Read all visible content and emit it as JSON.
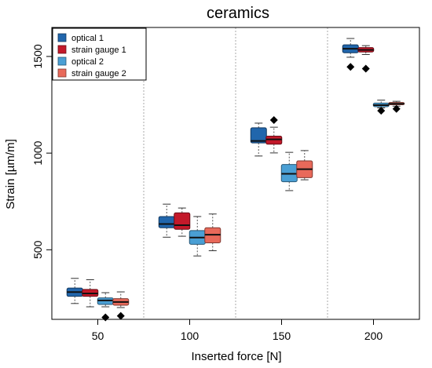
{
  "chart_data": {
    "type": "boxplot",
    "title": "ceramics",
    "xlabel": "Inserted force [N]",
    "ylabel": "Strain [µm/m]",
    "categories": [
      "50",
      "100",
      "150",
      "200"
    ],
    "yticks": [
      500,
      1000,
      1500
    ],
    "ylim": [
      140,
      1650
    ],
    "legend_position": "top-left",
    "grid": "vertical dotted separators between groups",
    "series": [
      {
        "name": "optical 1",
        "color": "#2166ac",
        "boxes": [
          {
            "whisker_low": 222,
            "q1": 259,
            "median": 281,
            "q3": 302,
            "whisker_high": 352,
            "outliers": []
          },
          {
            "whisker_low": 565,
            "q1": 614,
            "median": 633,
            "q3": 672,
            "whisker_high": 736,
            "outliers": []
          },
          {
            "whisker_low": 985,
            "q1": 1053,
            "median": 1063,
            "q3": 1131,
            "whisker_high": 1155,
            "outliers": []
          },
          {
            "whisker_low": 1496,
            "q1": 1519,
            "median": 1540,
            "q3": 1560,
            "whisker_high": 1593,
            "outliers": [
              1446
            ]
          }
        ]
      },
      {
        "name": "strain gauge 1",
        "color": "#c3192a",
        "boxes": [
          {
            "whisker_low": 205,
            "q1": 259,
            "median": 274,
            "q3": 295,
            "whisker_high": 345,
            "outliers": []
          },
          {
            "whisker_low": 570,
            "q1": 606,
            "median": 627,
            "q3": 691,
            "whisker_high": 716,
            "outliers": []
          },
          {
            "whisker_low": 1001,
            "q1": 1046,
            "median": 1071,
            "q3": 1088,
            "whisker_high": 1134,
            "outliers": [
              1171
            ]
          },
          {
            "whisker_low": 1510,
            "q1": 1523,
            "median": 1534,
            "q3": 1546,
            "whisker_high": 1556,
            "outliers": [
              1437
            ]
          }
        ]
      },
      {
        "name": "optical 2",
        "color": "#4a9fd4",
        "boxes": [
          {
            "whisker_low": 205,
            "q1": 217,
            "median": 238,
            "q3": 251,
            "whisker_high": 278,
            "outliers": [
              150
            ]
          },
          {
            "whisker_low": 468,
            "q1": 528,
            "median": 563,
            "q3": 599,
            "whisker_high": 672,
            "outliers": []
          },
          {
            "whisker_low": 806,
            "q1": 852,
            "median": 893,
            "q3": 941,
            "whisker_high": 1004,
            "outliers": []
          },
          {
            "whisker_low": 1234,
            "q1": 1240,
            "median": 1248,
            "q3": 1259,
            "whisker_high": 1274,
            "outliers": [
              1219
            ]
          }
        ]
      },
      {
        "name": "strain gauge 2",
        "color": "#e8695a",
        "boxes": [
          {
            "whisker_low": 201,
            "q1": 213,
            "median": 230,
            "q3": 247,
            "whisker_high": 282,
            "outliers": [
              158
            ]
          },
          {
            "whisker_low": 495,
            "q1": 536,
            "median": 578,
            "q3": 614,
            "whisker_high": 685,
            "outliers": []
          },
          {
            "whisker_low": 862,
            "q1": 873,
            "median": 917,
            "q3": 960,
            "whisker_high": 1013,
            "outliers": []
          },
          {
            "whisker_low": 1243,
            "q1": 1250,
            "median": 1255,
            "q3": 1262,
            "whisker_high": 1268,
            "outliers": [
              1229
            ]
          }
        ]
      }
    ]
  }
}
